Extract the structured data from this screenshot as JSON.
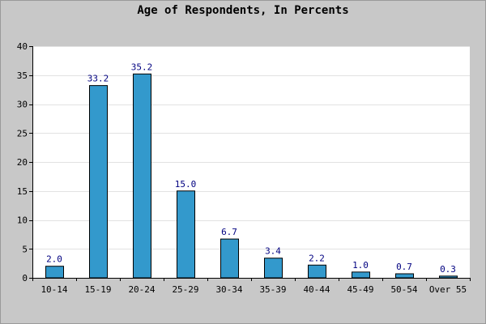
{
  "chart_data": {
    "type": "bar",
    "title": "Age of Respondents, In Percents",
    "categories": [
      "10-14",
      "15-19",
      "20-24",
      "25-29",
      "30-34",
      "35-39",
      "40-44",
      "45-49",
      "50-54",
      "Over 55"
    ],
    "series": [
      {
        "values": [
          2.0,
          33.2,
          35.2,
          15.0,
          6.7,
          3.4,
          2.2,
          1.0,
          0.7,
          0.3
        ]
      }
    ],
    "data_labels": [
      "2.0",
      "33.2",
      "35.2",
      "15.0",
      "6.7",
      "3.4",
      "2.2",
      "1.0",
      "0.7",
      "0.3"
    ],
    "ylim": [
      0,
      40
    ],
    "yticks": [
      0,
      5,
      10,
      15,
      20,
      25,
      30,
      35,
      40
    ],
    "grid": true,
    "colors": {
      "bar": "#3399cc",
      "bar_outline": "#000000",
      "data_label": "#000080",
      "plot_background": "#ffffff",
      "page_background": "#c8c8c8",
      "grid": "#e2e2e2"
    }
  }
}
